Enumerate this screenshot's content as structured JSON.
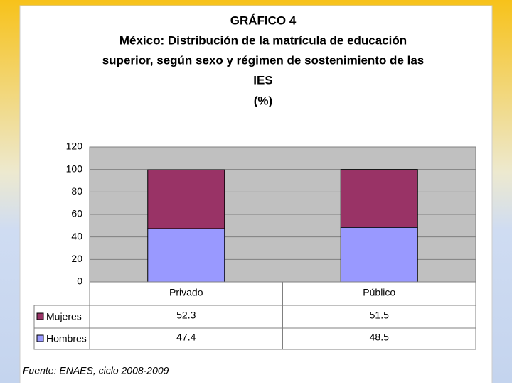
{
  "chart_data": {
    "type": "stacked_bar",
    "title": [
      "GRÁFICO 4",
      "México: Distribución de la matrícula de educación",
      "superior, según sexo y régimen de sostenimiento de las",
      "IES",
      "(%)"
    ],
    "categories": [
      "Privado",
      "Público"
    ],
    "series": [
      {
        "name": "Mujeres",
        "color": "#993366",
        "values": [
          52.3,
          51.5
        ]
      },
      {
        "name": "Hombres",
        "color": "#9999ff",
        "values": [
          47.4,
          48.5
        ]
      }
    ],
    "ylim": [
      0,
      120
    ],
    "yticks": [
      0,
      20,
      40,
      60,
      80,
      100,
      120
    ],
    "grid": true,
    "source": "Fuente: ENAES, ciclo 2008-2009"
  }
}
